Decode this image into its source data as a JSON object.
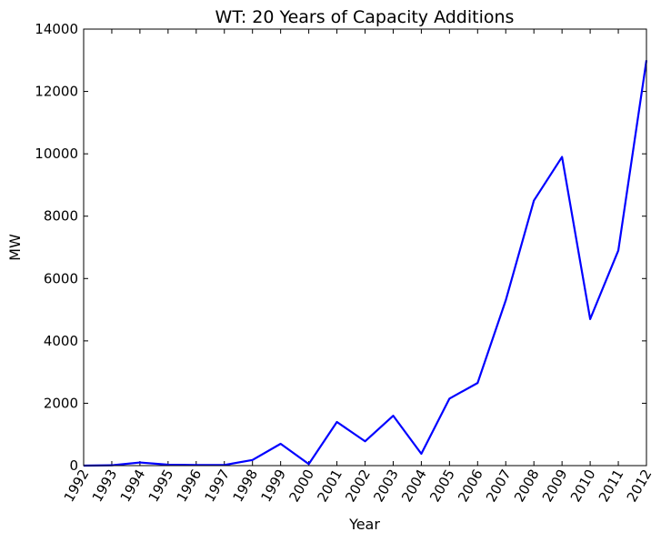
{
  "chart_data": {
    "type": "line",
    "title": "WT: 20 Years of Capacity Additions",
    "xlabel": "Year",
    "ylabel": "MW",
    "xlim": [
      1992,
      2012
    ],
    "ylim": [
      0,
      14000
    ],
    "xticks": [
      "1992",
      "1993",
      "1994",
      "1995",
      "1996",
      "1997",
      "1998",
      "1999",
      "2000",
      "2001",
      "2002",
      "2003",
      "2004",
      "2005",
      "2006",
      "2007",
      "2008",
      "2009",
      "2010",
      "2011",
      "2012"
    ],
    "yticks": [
      "0",
      "2000",
      "4000",
      "6000",
      "8000",
      "10000",
      "12000",
      "14000"
    ],
    "grid": false,
    "series": [
      {
        "color": "#0000ff",
        "x": [
          1992,
          1993,
          1994,
          1995,
          1996,
          1997,
          1998,
          1999,
          2000,
          2001,
          2002,
          2003,
          2004,
          2005,
          2006,
          2007,
          2008,
          2009,
          2010,
          2011,
          2012
        ],
        "y": [
          0,
          10,
          100,
          30,
          20,
          20,
          180,
          700,
          50,
          1400,
          780,
          1600,
          380,
          2150,
          2650,
          5300,
          8500,
          9900,
          4700,
          6900,
          13000
        ]
      }
    ]
  }
}
